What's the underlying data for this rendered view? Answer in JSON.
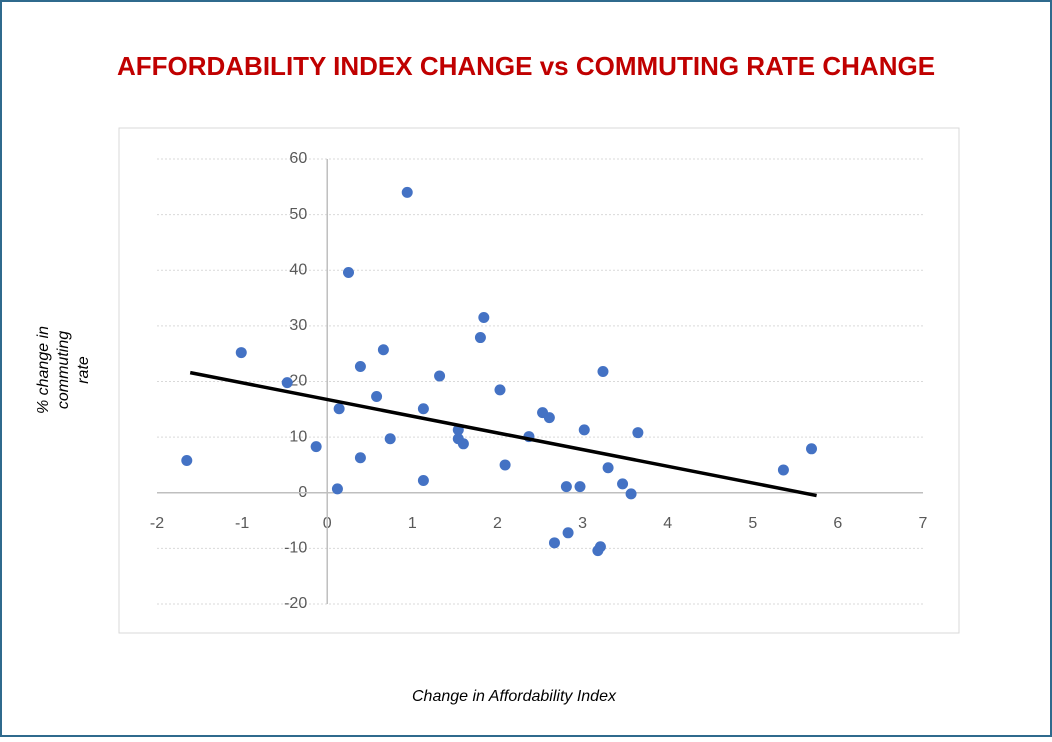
{
  "chart_data": {
    "type": "scatter",
    "title": "AFFORDABILITY INDEX CHANGE vs COMMUTING RATE CHANGE",
    "x_label": "Change in Affordability Index",
    "y_label_lines": [
      "% change in",
      "commuting",
      "rate"
    ],
    "color": "#4472c4",
    "x": [
      -1.65,
      -1.01,
      -0.47,
      -0.13,
      0.12,
      0.14,
      0.25,
      0.39,
      0.39,
      0.58,
      0.66,
      0.74,
      0.94,
      1.13,
      1.13,
      1.32,
      1.54,
      1.54,
      1.6,
      1.8,
      1.84,
      2.03,
      2.09,
      2.37,
      2.53,
      2.61,
      2.67,
      2.81,
      2.83,
      2.97,
      3.02,
      3.18,
      3.21,
      3.24,
      3.3,
      3.47,
      3.57,
      3.65,
      5.36,
      5.69
    ],
    "values": [
      5.8,
      25.2,
      19.8,
      8.3,
      0.7,
      15.1,
      39.6,
      22.7,
      6.3,
      17.3,
      25.7,
      9.7,
      54.0,
      15.1,
      2.2,
      21.0,
      11.3,
      9.7,
      8.8,
      27.9,
      31.5,
      18.5,
      5.0,
      10.1,
      14.4,
      13.5,
      -9.0,
      1.1,
      -7.2,
      1.1,
      11.3,
      -10.4,
      -9.7,
      21.8,
      4.5,
      1.6,
      -0.2,
      10.8,
      4.1,
      7.9
    ],
    "trendline": {
      "x": [
        -1.61,
        5.75
      ],
      "values": [
        21.6,
        -0.5
      ],
      "color": "#000000"
    },
    "xlim": [
      -2,
      7
    ],
    "xticks": [
      -2,
      -1,
      0,
      1,
      2,
      3,
      4,
      5,
      6,
      7
    ],
    "ylim": [
      -20,
      60
    ],
    "yticks": [
      -20,
      -10,
      0,
      10,
      20,
      30,
      40,
      50,
      60
    ],
    "grid": true
  }
}
